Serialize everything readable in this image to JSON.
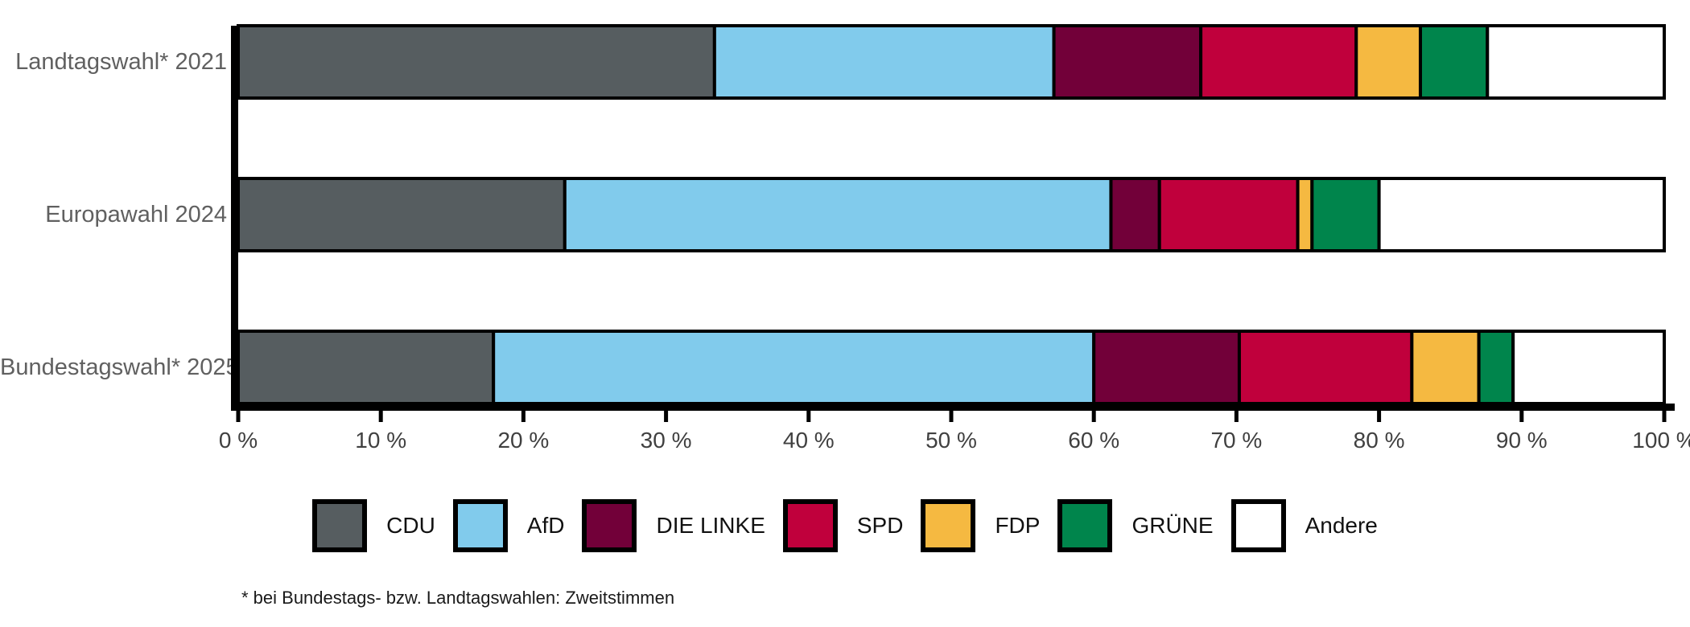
{
  "chart_data": {
    "type": "bar",
    "variant": "horizontal-stacked",
    "title": "",
    "categories": [
      "Landtagswahl* 2021",
      "Europawahl 2024",
      "Bundestagswahl* 2025"
    ],
    "series": [
      {
        "name": "CDU",
        "color": "#565D60",
        "values": [
          33.4,
          22.9,
          17.9
        ]
      },
      {
        "name": "AfD",
        "color": "#81CBEC",
        "values": [
          23.8,
          38.3,
          42.1
        ]
      },
      {
        "name": "DIE LINKE",
        "color": "#720039",
        "values": [
          10.3,
          3.4,
          10.2
        ]
      },
      {
        "name": "SPD",
        "color": "#C0003C",
        "values": [
          10.9,
          9.7,
          12.1
        ]
      },
      {
        "name": "FDP",
        "color": "#F5B941",
        "values": [
          4.5,
          1.0,
          4.7
        ]
      },
      {
        "name": "GRÜNE",
        "color": "#00854C",
        "values": [
          4.7,
          4.7,
          2.4
        ]
      },
      {
        "name": "Andere",
        "color": "#FFFFFF",
        "values": [
          12.4,
          20.0,
          10.6
        ]
      }
    ],
    "xlabel": "",
    "ylabel": "",
    "xlim": [
      0,
      100
    ],
    "x_tick_labels": [
      "0 %",
      "10 %",
      "20 %",
      "30 %",
      "40 %",
      "50 %",
      "60 %",
      "70 %",
      "80 %",
      "90 %",
      "100 %"
    ],
    "grid": false,
    "legend_position": "bottom",
    "bar_border_color": "#000000",
    "axis_color": "#000000",
    "footnote": "* bei Bundestags- bzw. Landtagswahlen: Zweitstimmen"
  }
}
